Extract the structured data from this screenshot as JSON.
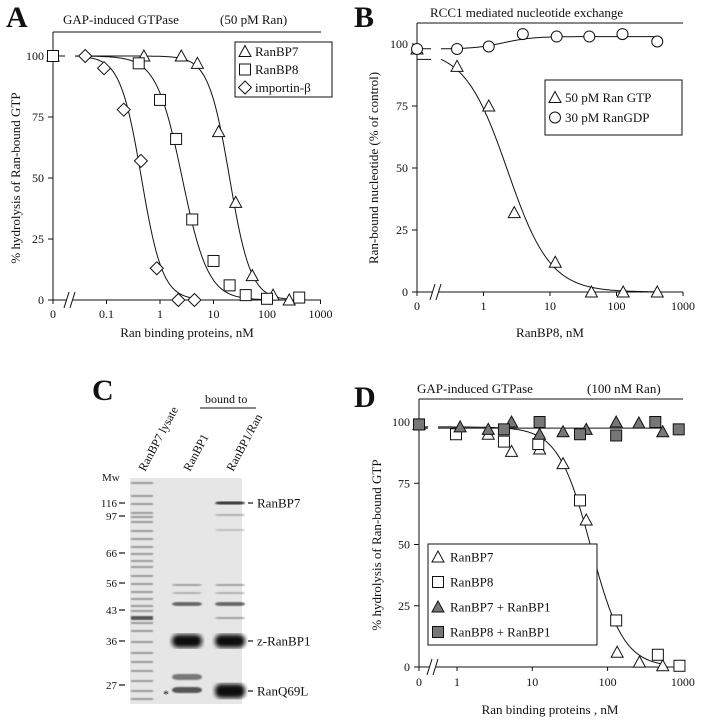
{
  "panel_letters": [
    "A",
    "B",
    "C",
    "D"
  ],
  "chart_data": [
    {
      "type": "scatter",
      "panel": "A",
      "title": "GAP-induced GTPase",
      "title_note": "(50 pM Ran)",
      "xlabel": "Ran binding proteins, nM",
      "ylabel": "% hydrolysis of Ran-bound GTP",
      "xscale": "log with axis break after 0",
      "xticks": [
        "0",
        "0.1",
        "1",
        "10",
        "100",
        "1000"
      ],
      "yticks": [
        "0",
        "25",
        "50",
        "75",
        "100"
      ],
      "ylim": [
        0,
        110
      ],
      "grid": false,
      "legend": "top-right",
      "series": [
        {
          "name": "RanBP7",
          "marker": "triangle",
          "filled": false,
          "points": [
            [
              0,
              100
            ],
            [
              0.5,
              100
            ],
            [
              2.5,
              100
            ],
            [
              5,
              97
            ],
            [
              12.5,
              69
            ],
            [
              26,
              40
            ],
            [
              53,
              10
            ],
            [
              130,
              2
            ],
            [
              260,
              0
            ]
          ]
        },
        {
          "name": "RanBP8",
          "marker": "square",
          "filled": false,
          "points": [
            [
              0,
              100
            ],
            [
              0.4,
              97
            ],
            [
              1,
              82
            ],
            [
              2,
              66
            ],
            [
              4,
              33
            ],
            [
              10,
              16
            ],
            [
              20,
              6
            ],
            [
              40,
              2
            ],
            [
              100,
              0.5
            ],
            [
              400,
              1
            ]
          ]
        },
        {
          "name": "importin-β",
          "marker": "diamond",
          "filled": false,
          "points": [
            [
              0.04,
              100
            ],
            [
              0.09,
              95
            ],
            [
              0.21,
              78
            ],
            [
              0.44,
              57
            ],
            [
              0.87,
              13
            ],
            [
              2.2,
              0
            ],
            [
              4.4,
              0
            ]
          ]
        }
      ]
    },
    {
      "type": "scatter",
      "panel": "B",
      "title": "RCC1 mediated nucleotide exchange",
      "title_note": "",
      "xlabel": "RanBP8, nM",
      "ylabel": "Ran-bound nucleotide (% of control)",
      "xscale": "log with axis break after 0",
      "xticks": [
        "0",
        "1",
        "10",
        "100",
        "1000"
      ],
      "yticks": [
        "0",
        "25",
        "50",
        "75",
        "100"
      ],
      "ylim": [
        0,
        108
      ],
      "grid": false,
      "legend": "right",
      "series": [
        {
          "name": "50 pM Ran GTP",
          "marker": "triangle",
          "filled": false,
          "points": [
            [
              0,
              98
            ],
            [
              0.4,
              91
            ],
            [
              1.2,
              75
            ],
            [
              2.9,
              32
            ],
            [
              12,
              12
            ],
            [
              42,
              0
            ],
            [
              126,
              0
            ],
            [
              410,
              0
            ]
          ]
        },
        {
          "name": "30 pM RanGDP",
          "marker": "circle",
          "filled": false,
          "points": [
            [
              0,
              98
            ],
            [
              0.4,
              98
            ],
            [
              1.2,
              99
            ],
            [
              3.9,
              104
            ],
            [
              12.6,
              103
            ],
            [
              39,
              103
            ],
            [
              123,
              104
            ],
            [
              410,
              101
            ]
          ]
        }
      ]
    },
    {
      "type": "scatter",
      "panel": "D",
      "title": "GAP-induced GTPase",
      "title_note": "(100 nM Ran)",
      "xlabel": "Ran binding proteins , nM",
      "ylabel": "% hydrolysis of Ran-bound GTP",
      "xscale": "log with axis break after 0",
      "xticks": [
        "0",
        "1",
        "10",
        "100",
        "1000"
      ],
      "yticks": [
        "0",
        "25",
        "50",
        "75",
        "100"
      ],
      "ylim": [
        0,
        109
      ],
      "grid": false,
      "legend": "bottom-left",
      "series": [
        {
          "name": "RanBP7",
          "marker": "triangle",
          "filled": false,
          "points": [
            [
              0,
              99
            ],
            [
              2.6,
              95
            ],
            [
              5.3,
              88
            ],
            [
              12.5,
              89
            ],
            [
              25.6,
              83
            ],
            [
              52,
              60
            ],
            [
              134,
              6
            ],
            [
              265,
              2
            ],
            [
              540,
              0.5
            ]
          ]
        },
        {
          "name": "RanBP8",
          "marker": "square",
          "filled": false,
          "points": [
            [
              0,
              99
            ],
            [
              0.97,
              95
            ],
            [
              4.2,
              92
            ],
            [
              12,
              91
            ],
            [
              43,
              68
            ],
            [
              130,
              19
            ],
            [
              465,
              5
            ],
            [
              900,
              0.5
            ]
          ]
        },
        {
          "name": "RanBP7  + RanBP1",
          "marker": "triangle",
          "filled": true,
          "points": [
            [
              0,
              99
            ],
            [
              1.1,
              98
            ],
            [
              2.6,
              97
            ],
            [
              5.3,
              100
            ],
            [
              12.5,
              95
            ],
            [
              25.6,
              96
            ],
            [
              52,
              97
            ],
            [
              130,
              100
            ],
            [
              260,
              99.6
            ],
            [
              540,
              96
            ]
          ]
        },
        {
          "name": "RanBP8  + RanBP1",
          "marker": "square",
          "filled": true,
          "points": [
            [
              0,
              99
            ],
            [
              4.2,
              97
            ],
            [
              12.5,
              100
            ],
            [
              43,
              95
            ],
            [
              130,
              94.5
            ],
            [
              430,
              100
            ],
            [
              880,
              97
            ]
          ]
        }
      ]
    }
  ],
  "gel": {
    "lanes": [
      "RanBP7 lysate",
      "RanBP1",
      "RanBP1/Ran"
    ],
    "group_label": "bound to",
    "mw_label": "Mw",
    "mw_markers": [
      "116",
      "97",
      "66",
      "56",
      "43",
      "36",
      "27"
    ],
    "band_labels": [
      "RanBP7",
      "z-RanBP1",
      "RanQ69L"
    ],
    "asterisk": "*"
  },
  "colors": {
    "ink": "#111111",
    "filled_marker": "#777777",
    "gel_bg": "#e6e6e6"
  }
}
